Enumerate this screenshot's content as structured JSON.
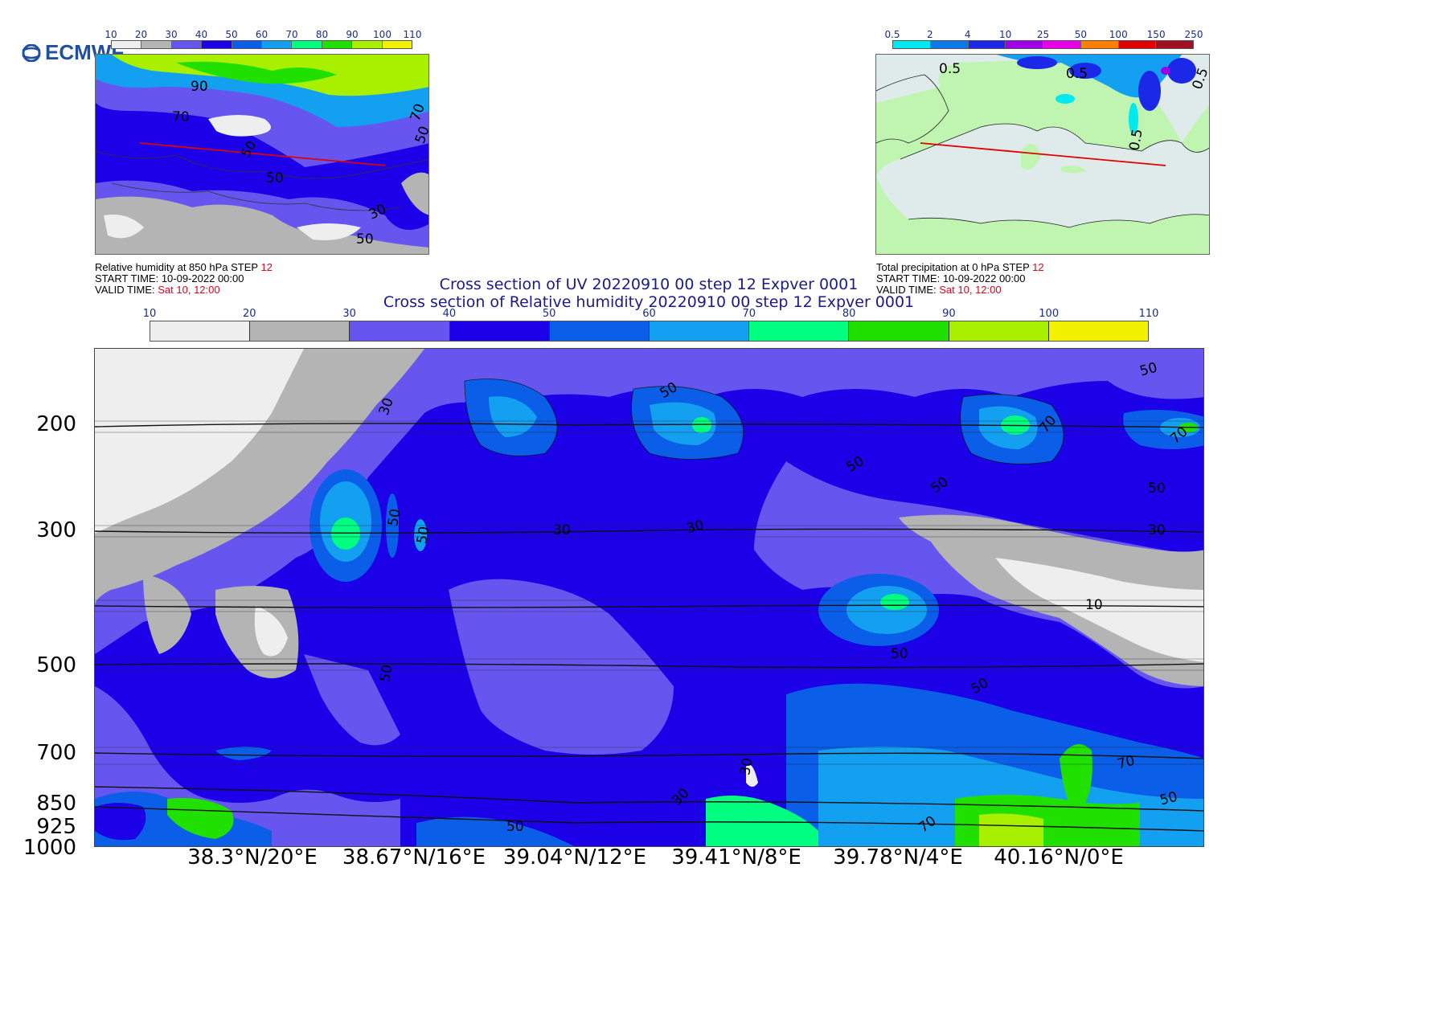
{
  "logo": {
    "text": "ECMWF"
  },
  "left_map": {
    "colorbar_ticks": [
      "10",
      "20",
      "30",
      "40",
      "50",
      "60",
      "70",
      "80",
      "90",
      "100",
      "110"
    ],
    "colorbar_colors": [
      "#eeeeee",
      "#b4b4b4",
      "#6655ee",
      "#1c00e8",
      "#0a5ee8",
      "#14a0f0",
      "#00ff80",
      "#20e000",
      "#a8f000",
      "#f2f200"
    ],
    "contour_labels": [
      "90",
      "70",
      "70",
      "50",
      "50",
      "50",
      "30",
      "50"
    ],
    "caption": {
      "line1_prefix": "Relative humidity at 850 hPa  STEP ",
      "line1_step": "12",
      "line2": "START TIME: 10-09-2022 00:00",
      "line3_prefix": "VALID TIME:  ",
      "line3_valid": "Sat 10, 12:00"
    }
  },
  "right_map": {
    "colorbar_ticks": [
      "0.5",
      "2",
      "4",
      "10",
      "25",
      "50",
      "100",
      "150",
      "250"
    ],
    "colorbar_colors": [
      "#00e8f0",
      "#0a7ae8",
      "#1c28e8",
      "#a000e8",
      "#e800e8",
      "#ff8000",
      "#e00000",
      "#a01020"
    ],
    "contour_labels": [
      "0.5",
      "0.5",
      "0.5",
      "0.5"
    ],
    "caption": {
      "line1_prefix": "Total precipitation at 0 hPa  STEP ",
      "line1_step": "12",
      "line2": "START TIME: 10-09-2022 00:00",
      "line3_prefix": "VALID TIME:  ",
      "line3_valid": "Sat 10, 12:00"
    }
  },
  "main": {
    "title_line1": "Cross section of UV 20220910 00 step 12 Expver 0001",
    "title_line2": "Cross section of Relative humidity 20220910 00 step 12 Expver 0001",
    "colorbar_ticks": [
      "10",
      "20",
      "30",
      "40",
      "50",
      "60",
      "70",
      "80",
      "90",
      "100",
      "110"
    ],
    "colorbar_colors": [
      "#eeeeee",
      "#b4b4b4",
      "#6655ee",
      "#1c00e8",
      "#0a5ee8",
      "#14a0f0",
      "#00ff80",
      "#20e000",
      "#a8f000",
      "#f2f200"
    ],
    "y_axis_labels": [
      "200",
      "300",
      "500",
      "700",
      "850",
      "925",
      "1000"
    ],
    "x_axis_labels": [
      "38.3°N/20°E",
      "38.67°N/16°E",
      "39.04°N/12°E",
      "39.41°N/8°E",
      "39.78°N/4°E",
      "40.16°N/0°E"
    ],
    "contour_labels": [
      "30",
      "50",
      "50",
      "50",
      "70",
      "70",
      "50",
      "50",
      "50",
      "30",
      "30",
      "30",
      "10",
      "50",
      "50",
      "50",
      "50",
      "30",
      "30",
      "70",
      "70",
      "50",
      "50"
    ]
  }
}
